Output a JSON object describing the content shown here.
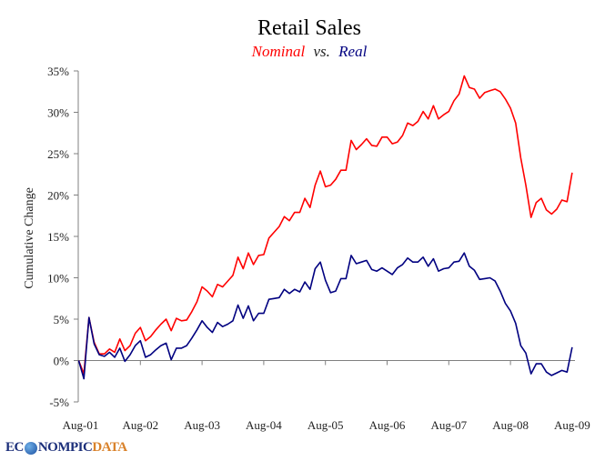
{
  "chart_data": {
    "type": "line",
    "title": "Retail Sales",
    "subtitle": {
      "part1": "Nominal",
      "part2": "vs.",
      "part3": "Real"
    },
    "ylabel": "Cumulative Change",
    "xlabel": "",
    "ylim": [
      -5,
      35
    ],
    "yticks": [
      "-5%",
      "0%",
      "5%",
      "10%",
      "15%",
      "20%",
      "25%",
      "30%",
      "35%"
    ],
    "xticks": [
      "Aug-01",
      "Aug-02",
      "Aug-03",
      "Aug-04",
      "Aug-05",
      "Aug-06",
      "Aug-07",
      "Aug-08",
      "Aug-09"
    ],
    "x_range": [
      "2001-08",
      "2009-08"
    ],
    "x_frequency": "monthly",
    "grid": false,
    "series": [
      {
        "name": "Nominal",
        "color": "#ff0000",
        "values": [
          0,
          -1.6,
          5.2,
          2.2,
          0.8,
          0.8,
          1.4,
          1.0,
          2.6,
          1.2,
          1.8,
          3.3,
          4.0,
          2.4,
          2.9,
          3.7,
          4.4,
          5.0,
          3.6,
          5.1,
          4.8,
          4.9,
          5.9,
          7.1,
          8.9,
          8.4,
          7.7,
          9.2,
          8.9,
          9.6,
          10.3,
          12.5,
          11.1,
          13.0,
          11.6,
          12.7,
          12.8,
          14.8,
          15.5,
          16.2,
          17.4,
          16.9,
          17.9,
          17.9,
          19.6,
          18.5,
          21.2,
          22.9,
          21.0,
          21.2,
          21.9,
          23.0,
          23.0,
          26.6,
          25.5,
          26.1,
          26.8,
          26.0,
          25.9,
          27.0,
          27.0,
          26.2,
          26.4,
          27.2,
          28.7,
          28.4,
          28.9,
          30.1,
          29.2,
          30.8,
          29.2,
          29.7,
          30.1,
          31.4,
          32.2,
          34.4,
          33.0,
          32.8,
          31.7,
          32.4,
          32.6,
          32.8,
          32.5,
          31.6,
          30.5,
          28.7,
          24.5,
          21.2,
          17.3,
          19.1,
          19.6,
          18.2,
          17.7,
          18.3,
          19.4,
          19.2,
          22.7
        ]
      },
      {
        "name": "Real",
        "color": "#000080",
        "values": [
          0,
          -2.2,
          5.2,
          2.0,
          0.7,
          0.5,
          1.0,
          0.4,
          1.5,
          -0.1,
          0.7,
          1.8,
          2.4,
          0.4,
          0.7,
          1.3,
          1.8,
          2.1,
          0.1,
          1.5,
          1.5,
          1.8,
          2.7,
          3.7,
          4.8,
          4.0,
          3.4,
          4.6,
          4.1,
          4.4,
          4.8,
          6.7,
          5.1,
          6.6,
          4.8,
          5.7,
          5.7,
          7.4,
          7.5,
          7.6,
          8.6,
          8.1,
          8.6,
          8.3,
          9.5,
          8.6,
          11.1,
          11.9,
          9.7,
          8.2,
          8.4,
          9.9,
          9.9,
          12.7,
          11.7,
          11.9,
          12.1,
          11.0,
          10.8,
          11.2,
          10.8,
          10.4,
          11.2,
          11.6,
          12.4,
          11.9,
          11.9,
          12.5,
          11.4,
          12.3,
          10.8,
          11.1,
          11.2,
          11.9,
          12.0,
          13.0,
          11.4,
          10.9,
          9.8,
          9.9,
          10.0,
          9.6,
          8.4,
          6.9,
          6.0,
          4.5,
          1.8,
          0.9,
          -1.6,
          -0.4,
          -0.4,
          -1.4,
          -1.8,
          -1.5,
          -1.2,
          -1.4,
          1.6
        ]
      }
    ]
  },
  "logo": {
    "part1": "EC",
    "part2": "NOMPIC",
    "part3": "DATA"
  }
}
